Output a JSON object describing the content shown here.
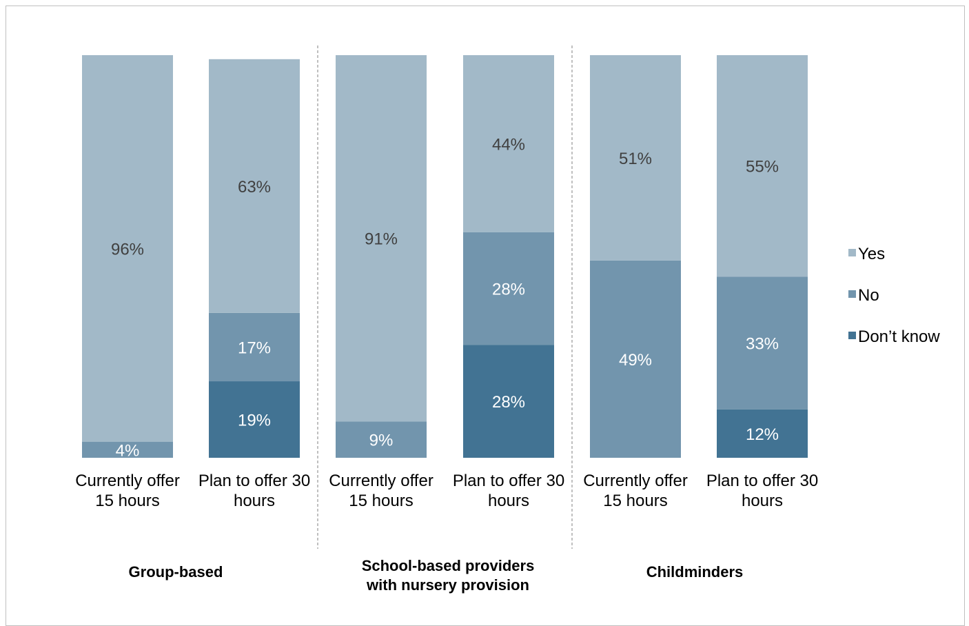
{
  "chart_data": {
    "type": "bar",
    "stacked": true,
    "percent": true,
    "categories": [
      "Currently offer 15 hours",
      "Plan to offer 30 hours",
      "Currently offer 15 hours",
      "Plan to offer 30 hours",
      "Currently offer 15 hours",
      "Plan to offer 30 hours"
    ],
    "category_lines": [
      [
        "Currently offer",
        "15 hours"
      ],
      [
        "Plan to offer 30",
        "hours"
      ],
      [
        "Currently offer",
        "15 hours"
      ],
      [
        "Plan to offer 30",
        "hours"
      ],
      [
        "Currently offer",
        "15 hours"
      ],
      [
        "Plan to offer 30",
        "hours"
      ]
    ],
    "groups": [
      {
        "lines": [
          "Group-based"
        ],
        "categories": [
          0,
          1
        ]
      },
      {
        "lines": [
          "School-based providers",
          "with nursery provision"
        ],
        "categories": [
          2,
          3
        ]
      },
      {
        "lines": [
          "Childminders"
        ],
        "categories": [
          4,
          5
        ]
      }
    ],
    "series": [
      {
        "name": "Don’t know",
        "color": "#427393",
        "label_color": "#ffffff",
        "values": [
          0,
          19,
          0,
          28,
          0,
          12
        ]
      },
      {
        "name": "No",
        "color": "#7295ad",
        "label_color": "#ffffff",
        "values": [
          4,
          17,
          9,
          28,
          49,
          33
        ]
      },
      {
        "name": "Yes",
        "color": "#a2b9c8",
        "label_color": "#404040",
        "values": [
          96,
          63,
          91,
          44,
          51,
          55
        ]
      }
    ],
    "legend_order": [
      "Yes",
      "No",
      "Don’t know"
    ],
    "legend_position": "right",
    "ylim": [
      0,
      100
    ],
    "grid": false,
    "group_separator": "dashed"
  }
}
